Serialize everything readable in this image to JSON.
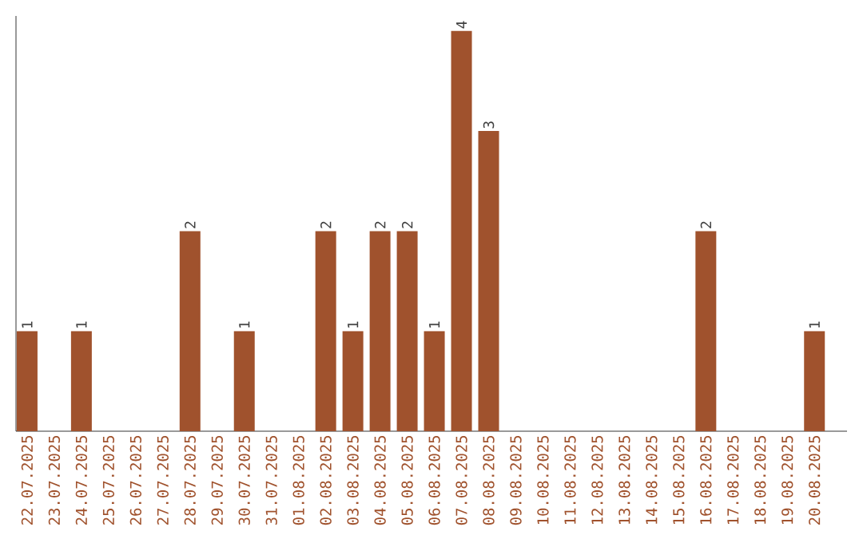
{
  "chart_data": {
    "type": "bar",
    "categories": [
      "22.07.2025",
      "23.07.2025",
      "24.07.2025",
      "25.07.2025",
      "26.07.2025",
      "27.07.2025",
      "28.07.2025",
      "29.07.2025",
      "30.07.2025",
      "31.07.2025",
      "01.08.2025",
      "02.08.2025",
      "03.08.2025",
      "04.08.2025",
      "05.08.2025",
      "06.08.2025",
      "07.08.2025",
      "08.08.2025",
      "09.08.2025",
      "10.08.2025",
      "11.08.2025",
      "12.08.2025",
      "13.08.2025",
      "14.08.2025",
      "15.08.2025",
      "16.08.2025",
      "17.08.2025",
      "18.08.2025",
      "19.08.2025",
      "20.08.2025"
    ],
    "values": [
      1,
      0,
      1,
      0,
      0,
      0,
      2,
      0,
      1,
      0,
      0,
      2,
      1,
      2,
      2,
      1,
      4,
      3,
      0,
      0,
      0,
      0,
      0,
      0,
      0,
      2,
      0,
      0,
      0,
      1
    ],
    "value_labels": [
      "1",
      null,
      "1",
      null,
      null,
      null,
      "2",
      null,
      "1",
      null,
      null,
      "2",
      "1",
      "2",
      "2",
      "1",
      "4",
      "3",
      null,
      null,
      null,
      null,
      null,
      null,
      null,
      "2",
      null,
      null,
      null,
      "1"
    ],
    "color": "#a0522d",
    "ylim": [
      0,
      4.15
    ],
    "tick_labels": "x"
  }
}
